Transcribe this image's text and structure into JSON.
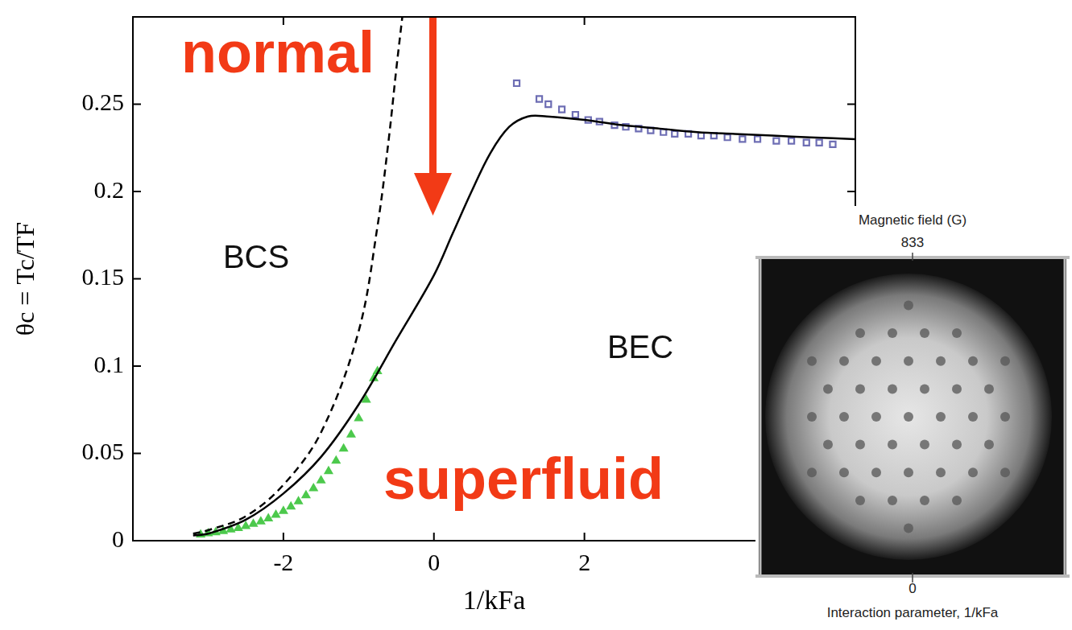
{
  "chart_data": {
    "type": "scatter",
    "x_label": "1/kFa",
    "y_label": "θc = Tc/TF",
    "xlim": [
      -4,
      5.6
    ],
    "xticks": [
      -2,
      0,
      2
    ],
    "ylim": [
      0,
      0.3
    ],
    "yticks": [
      0,
      0.05,
      0.1,
      0.15,
      0.2,
      0.25
    ],
    "grid": false,
    "annotations": [
      "normal",
      "superfluid",
      "BCS",
      "BEC"
    ],
    "series": [
      {
        "type": "line",
        "color": "#000000",
        "line_style": "solid",
        "x": [
          -3.2,
          -3,
          -2.5,
          -2,
          -1.5,
          -1,
          -0.5,
          0,
          0.25,
          0.5,
          0.75,
          1,
          1.25,
          1.5,
          2,
          2.5,
          3,
          3.5,
          4,
          4.5,
          5,
          5.6
        ],
        "values": [
          0.003,
          0.004,
          0.012,
          0.027,
          0.048,
          0.078,
          0.115,
          0.152,
          0.176,
          0.2,
          0.222,
          0.237,
          0.243,
          0.243,
          0.241,
          0.238,
          0.236,
          0.234,
          0.233,
          0.232,
          0.231,
          0.23
        ]
      },
      {
        "type": "line",
        "color": "#000000",
        "line_style": "dashed",
        "x": [
          -3.2,
          -3,
          -2.5,
          -2,
          -1.5,
          -1,
          -0.75,
          -0.6,
          -0.5,
          -0.42
        ],
        "values": [
          0.004,
          0.006,
          0.014,
          0.032,
          0.062,
          0.12,
          0.18,
          0.23,
          0.27,
          0.3
        ]
      },
      {
        "type": "scatter",
        "color": "#4cc94c",
        "marker": "triangle",
        "x": [
          -3.1,
          -3,
          -2.9,
          -2.8,
          -2.7,
          -2.6,
          -2.5,
          -2.4,
          -2.3,
          -2.2,
          -2.1,
          -2,
          -1.9,
          -1.8,
          -1.7,
          -1.6,
          -1.5,
          -1.4,
          -1.3,
          -1.2,
          -1.1,
          -1,
          -0.9,
          -0.8,
          -0.75
        ],
        "values": [
          0.0035,
          0.0041,
          0.0047,
          0.0054,
          0.0063,
          0.0072,
          0.0083,
          0.0096,
          0.011,
          0.0127,
          0.0147,
          0.0169,
          0.0195,
          0.0225,
          0.0259,
          0.0299,
          0.0344,
          0.0397,
          0.0457,
          0.0527,
          0.0607,
          0.07,
          0.0807,
          0.093,
          0.097
        ]
      },
      {
        "type": "scatter",
        "color": "#6e6eb4",
        "marker": "square",
        "x": [
          1.1,
          1.4,
          1.52,
          1.7,
          1.88,
          2.05,
          2.2,
          2.4,
          2.55,
          2.72,
          2.88,
          3.05,
          3.2,
          3.38,
          3.55,
          3.72,
          3.9,
          4.1,
          4.3,
          4.55,
          4.75,
          4.95,
          5.12,
          5.3
        ],
        "values": [
          0.262,
          0.253,
          0.25,
          0.247,
          0.244,
          0.241,
          0.24,
          0.238,
          0.237,
          0.236,
          0.235,
          0.234,
          0.233,
          0.233,
          0.232,
          0.232,
          0.231,
          0.23,
          0.23,
          0.229,
          0.229,
          0.228,
          0.228,
          0.227
        ]
      }
    ]
  },
  "inset": {
    "top_label": "Magnetic field (G)",
    "top_ticks": [
      833
    ],
    "bottom_ticks": [
      0
    ],
    "bottom_label": "Interaction parameter, 1/kFa"
  }
}
